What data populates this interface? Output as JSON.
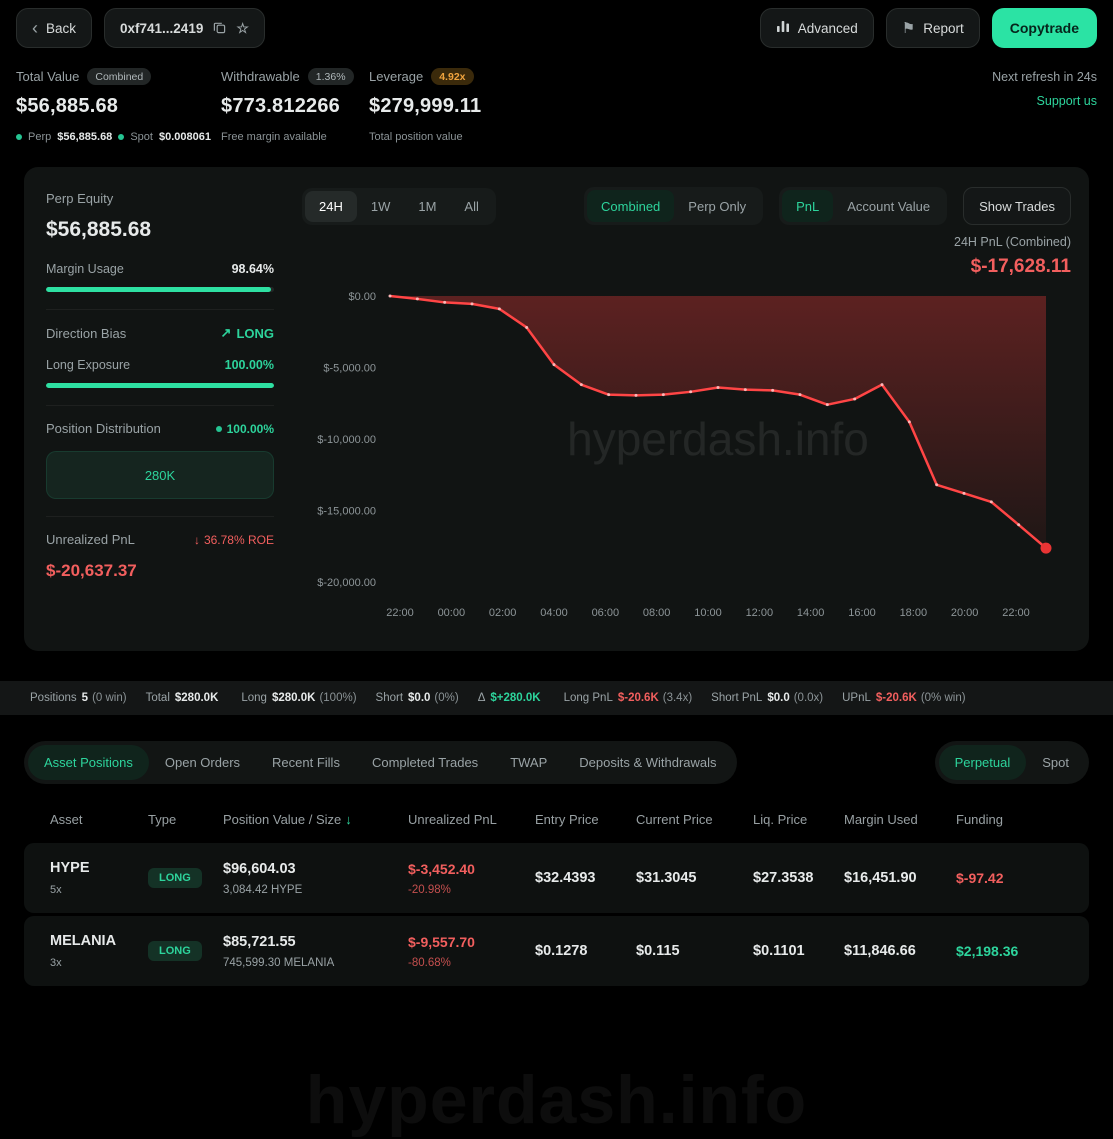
{
  "header": {
    "back_label": "Back",
    "address": "0xf741...2419",
    "advanced_label": "Advanced",
    "report_label": "Report",
    "copytrade_label": "Copytrade"
  },
  "stats": {
    "total_value": {
      "label": "Total Value",
      "badge": "Combined",
      "value": "$56,885.68",
      "perp_label": "Perp",
      "perp_value": "$56,885.68",
      "spot_label": "Spot",
      "spot_value": "$0.008061"
    },
    "withdrawable": {
      "label": "Withdrawable",
      "badge": "1.36%",
      "value": "$773.812266",
      "sub": "Free margin available"
    },
    "leverage": {
      "label": "Leverage",
      "badge": "4.92x",
      "value": "$279,999.11",
      "sub": "Total position value"
    },
    "refresh": "Next refresh in 24s",
    "support": "Support us"
  },
  "panel": {
    "sidebar": {
      "perp_equity_label": "Perp Equity",
      "perp_equity_value": "$56,885.68",
      "margin_usage_label": "Margin Usage",
      "margin_usage_value": "98.64%",
      "margin_usage_pct": 98.64,
      "direction_bias_label": "Direction Bias",
      "direction_bias_value": "LONG",
      "long_exposure_label": "Long Exposure",
      "long_exposure_value": "100.00%",
      "long_exposure_pct": 100,
      "position_distribution_label": "Position Distribution",
      "position_distribution_value": "100.00%",
      "distribution_box": "280K",
      "unrealized_pnl_label": "Unrealized PnL",
      "roe": "36.78% ROE",
      "unrealized_pnl_value": "$-20,637.37"
    },
    "controls": {
      "time_tabs": [
        "24H",
        "1W",
        "1M",
        "All"
      ],
      "mode_tabs": [
        "Combined",
        "Perp Only"
      ],
      "view_tabs": [
        "PnL",
        "Account Value"
      ],
      "show_trades": "Show Trades",
      "pnl_label": "24H PnL (Combined)",
      "pnl_value": "$-17,628.11"
    }
  },
  "chart_data": {
    "type": "area",
    "title": "24H PnL (Combined)",
    "watermark": "hyperdash.info",
    "line_color": "#ff4545",
    "fill_top": "rgba(215,55,55,0.38)",
    "fill_bottom": "rgba(215,55,55,0.07)",
    "ylim": [
      -20000,
      0
    ],
    "y_ticks": [
      "$0.00",
      "$-5,000.00",
      "$-10,000.00",
      "$-15,000.00",
      "$-20,000.00"
    ],
    "x_ticks": [
      "22:00",
      "00:00",
      "02:00",
      "04:00",
      "06:00",
      "08:00",
      "10:00",
      "12:00",
      "14:00",
      "16:00",
      "18:00",
      "20:00",
      "22:00"
    ],
    "values": [
      0,
      -200,
      -450,
      -550,
      -900,
      -2200,
      -4800,
      -6200,
      -6900,
      -6950,
      -6900,
      -6700,
      -6400,
      -6550,
      -6600,
      -6900,
      -7600,
      -7200,
      -6200,
      -8800,
      -13200,
      -13800,
      -14400,
      -16000,
      -17628
    ]
  },
  "positions_bar": {
    "items": [
      {
        "label": "Positions",
        "value": "5",
        "extra": "(0 win)"
      },
      {
        "label": "Total",
        "value": "$280.0K"
      },
      {
        "label": "Long",
        "value": "$280.0K",
        "extra": "(100%)"
      },
      {
        "label": "Short",
        "value": "$0.0",
        "extra": "(0%)"
      },
      {
        "label": "Δ",
        "value": "$+280.0K",
        "color": "#2dd49c"
      },
      {
        "label": "Long PnL",
        "value": "$-20.6K",
        "extra": "(3.4x)",
        "color": "#f25f5e"
      },
      {
        "label": "Short PnL",
        "value": "$0.0",
        "extra": "(0.0x)"
      },
      {
        "label": "UPnL",
        "value": "$-20.6K",
        "extra": "(0% win)",
        "color": "#f25f5e"
      }
    ]
  },
  "tabs": {
    "left": [
      "Asset Positions",
      "Open Orders",
      "Recent Fills",
      "Completed Trades",
      "TWAP",
      "Deposits & Withdrawals"
    ],
    "right": [
      "Perpetual",
      "Spot"
    ]
  },
  "table": {
    "headers": [
      "Asset",
      "Type",
      "Position Value / Size",
      "Unrealized PnL",
      "Entry Price",
      "Current Price",
      "Liq. Price",
      "Margin Used",
      "Funding"
    ],
    "rows": [
      {
        "asset": "HYPE",
        "lev": "5x",
        "type": "LONG",
        "value": "$96,604.03",
        "size": "3,084.42 HYPE",
        "upnl": "$-3,452.40",
        "upnl_pct": "-20.98%",
        "entry": "$32.4393",
        "current": "$31.3045",
        "liq": "$27.3538",
        "margin": "$16,451.90",
        "funding": "$-97.42",
        "funding_color": "#f25f5e"
      },
      {
        "asset": "MELANIA",
        "lev": "3x",
        "type": "LONG",
        "value": "$85,721.55",
        "size": "745,599.30 MELANIA",
        "upnl": "$-9,557.70",
        "upnl_pct": "-80.68%",
        "entry": "$0.1278",
        "current": "$0.115",
        "liq": "$0.1101",
        "margin": "$11,846.66",
        "funding": "$2,198.36",
        "funding_color": "#2dd49c"
      }
    ]
  },
  "watermark": "hyperdash.info"
}
